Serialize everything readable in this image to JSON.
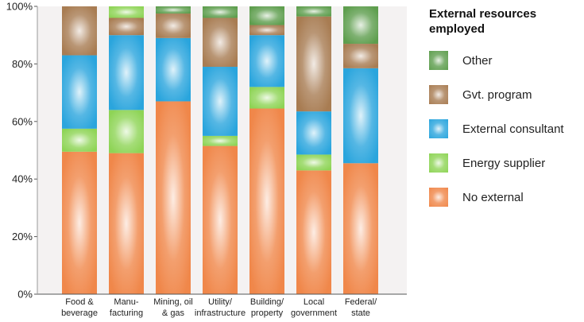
{
  "chart_data": {
    "type": "bar",
    "stacked": true,
    "percent": true,
    "categories": [
      [
        "Food &",
        "beverage"
      ],
      [
        "Manu-",
        "facturing"
      ],
      [
        "Mining, oil",
        "& gas"
      ],
      [
        "Utility/",
        "infrastructure"
      ],
      [
        "Building/",
        "property"
      ],
      [
        "Local",
        "government"
      ],
      [
        "Federal/",
        "state"
      ]
    ],
    "series": [
      {
        "name": "No external",
        "color": "#f0874a",
        "values": [
          49.5,
          49,
          67,
          51.5,
          64.5,
          43,
          45.5
        ]
      },
      {
        "name": "Energy supplier",
        "color": "#8ed456",
        "values": [
          8,
          15,
          0,
          3.5,
          7.5,
          5.5,
          0
        ]
      },
      {
        "name": "External consultant",
        "color": "#2aa5dd",
        "values": [
          25.5,
          26,
          22,
          24,
          18,
          15,
          33
        ]
      },
      {
        "name": "Gvt. program",
        "color": "#a87c52",
        "values": [
          17,
          6,
          8.5,
          17,
          3.5,
          33,
          8.5
        ]
      },
      {
        "name": "Energy supplier",
        "color": "#8ed456",
        "values": [
          0,
          4,
          0,
          0,
          0,
          0,
          0
        ]
      },
      {
        "name": "Other",
        "color": "#5e9e4e",
        "values": [
          0,
          0,
          2.5,
          4,
          6.5,
          3.5,
          13
        ]
      }
    ],
    "legend_title": "External resources employed",
    "legend_order": [
      "Other",
      "Gvt. program",
      "External consultant",
      "Energy supplier",
      "No external"
    ],
    "legend_colors": [
      "#5e9e4e",
      "#a87c52",
      "#2aa5dd",
      "#8ed456",
      "#f0874a"
    ],
    "ylim": [
      0,
      100
    ],
    "yticks": [
      "0%",
      "20%",
      "40%",
      "60%",
      "80%",
      "100%"
    ],
    "grid": false,
    "legend_position": "right"
  }
}
